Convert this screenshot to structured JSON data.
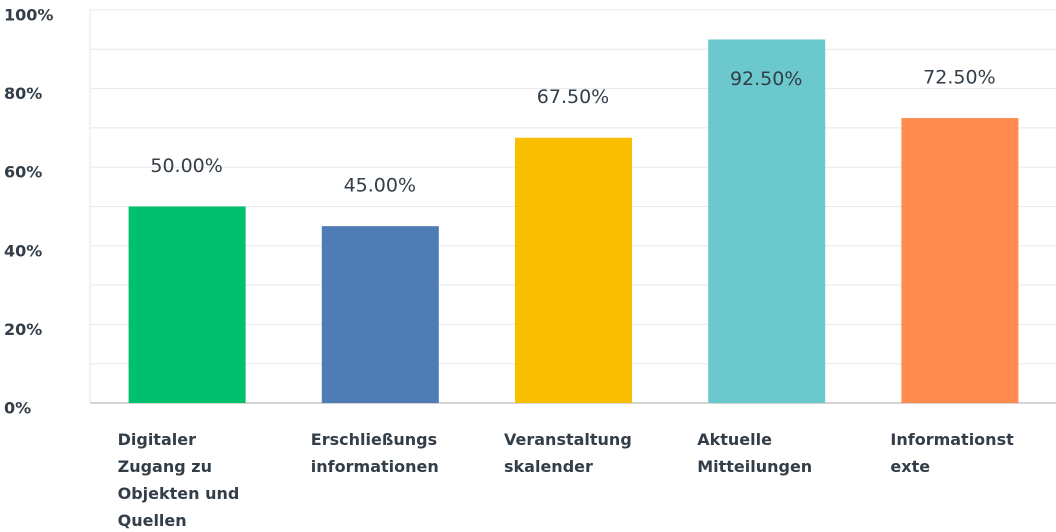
{
  "chart_data": {
    "type": "bar",
    "categories": [
      [
        "Digitaler",
        "Zugang zu",
        "Objekten und",
        "Quellen"
      ],
      [
        "Erschließungs",
        "informationen"
      ],
      [
        "Veranstaltung",
        "skalender"
      ],
      [
        "Aktuelle",
        "Mitteilungen"
      ],
      [
        "Informationst",
        "exte"
      ]
    ],
    "values": [
      50,
      45,
      67.5,
      92.5,
      72.5
    ],
    "value_labels": [
      "50.00%",
      "45.00%",
      "67.50%",
      "92.50%",
      "72.50%"
    ],
    "colors": [
      "#00bf6f",
      "#507cb6",
      "#f9be00",
      "#6bc8cd",
      "#ff8b4f"
    ],
    "ylim": [
      0,
      100
    ],
    "yticks": [
      {
        "value": 0,
        "label": "0%"
      },
      {
        "value": 20,
        "label": "20%"
      },
      {
        "value": 40,
        "label": "40%"
      },
      {
        "value": 60,
        "label": "60%"
      },
      {
        "value": 80,
        "label": "80%"
      },
      {
        "value": 100,
        "label": "100%"
      }
    ],
    "minor_yticks": [
      10,
      30,
      50,
      70,
      90
    ],
    "grid": true
  }
}
